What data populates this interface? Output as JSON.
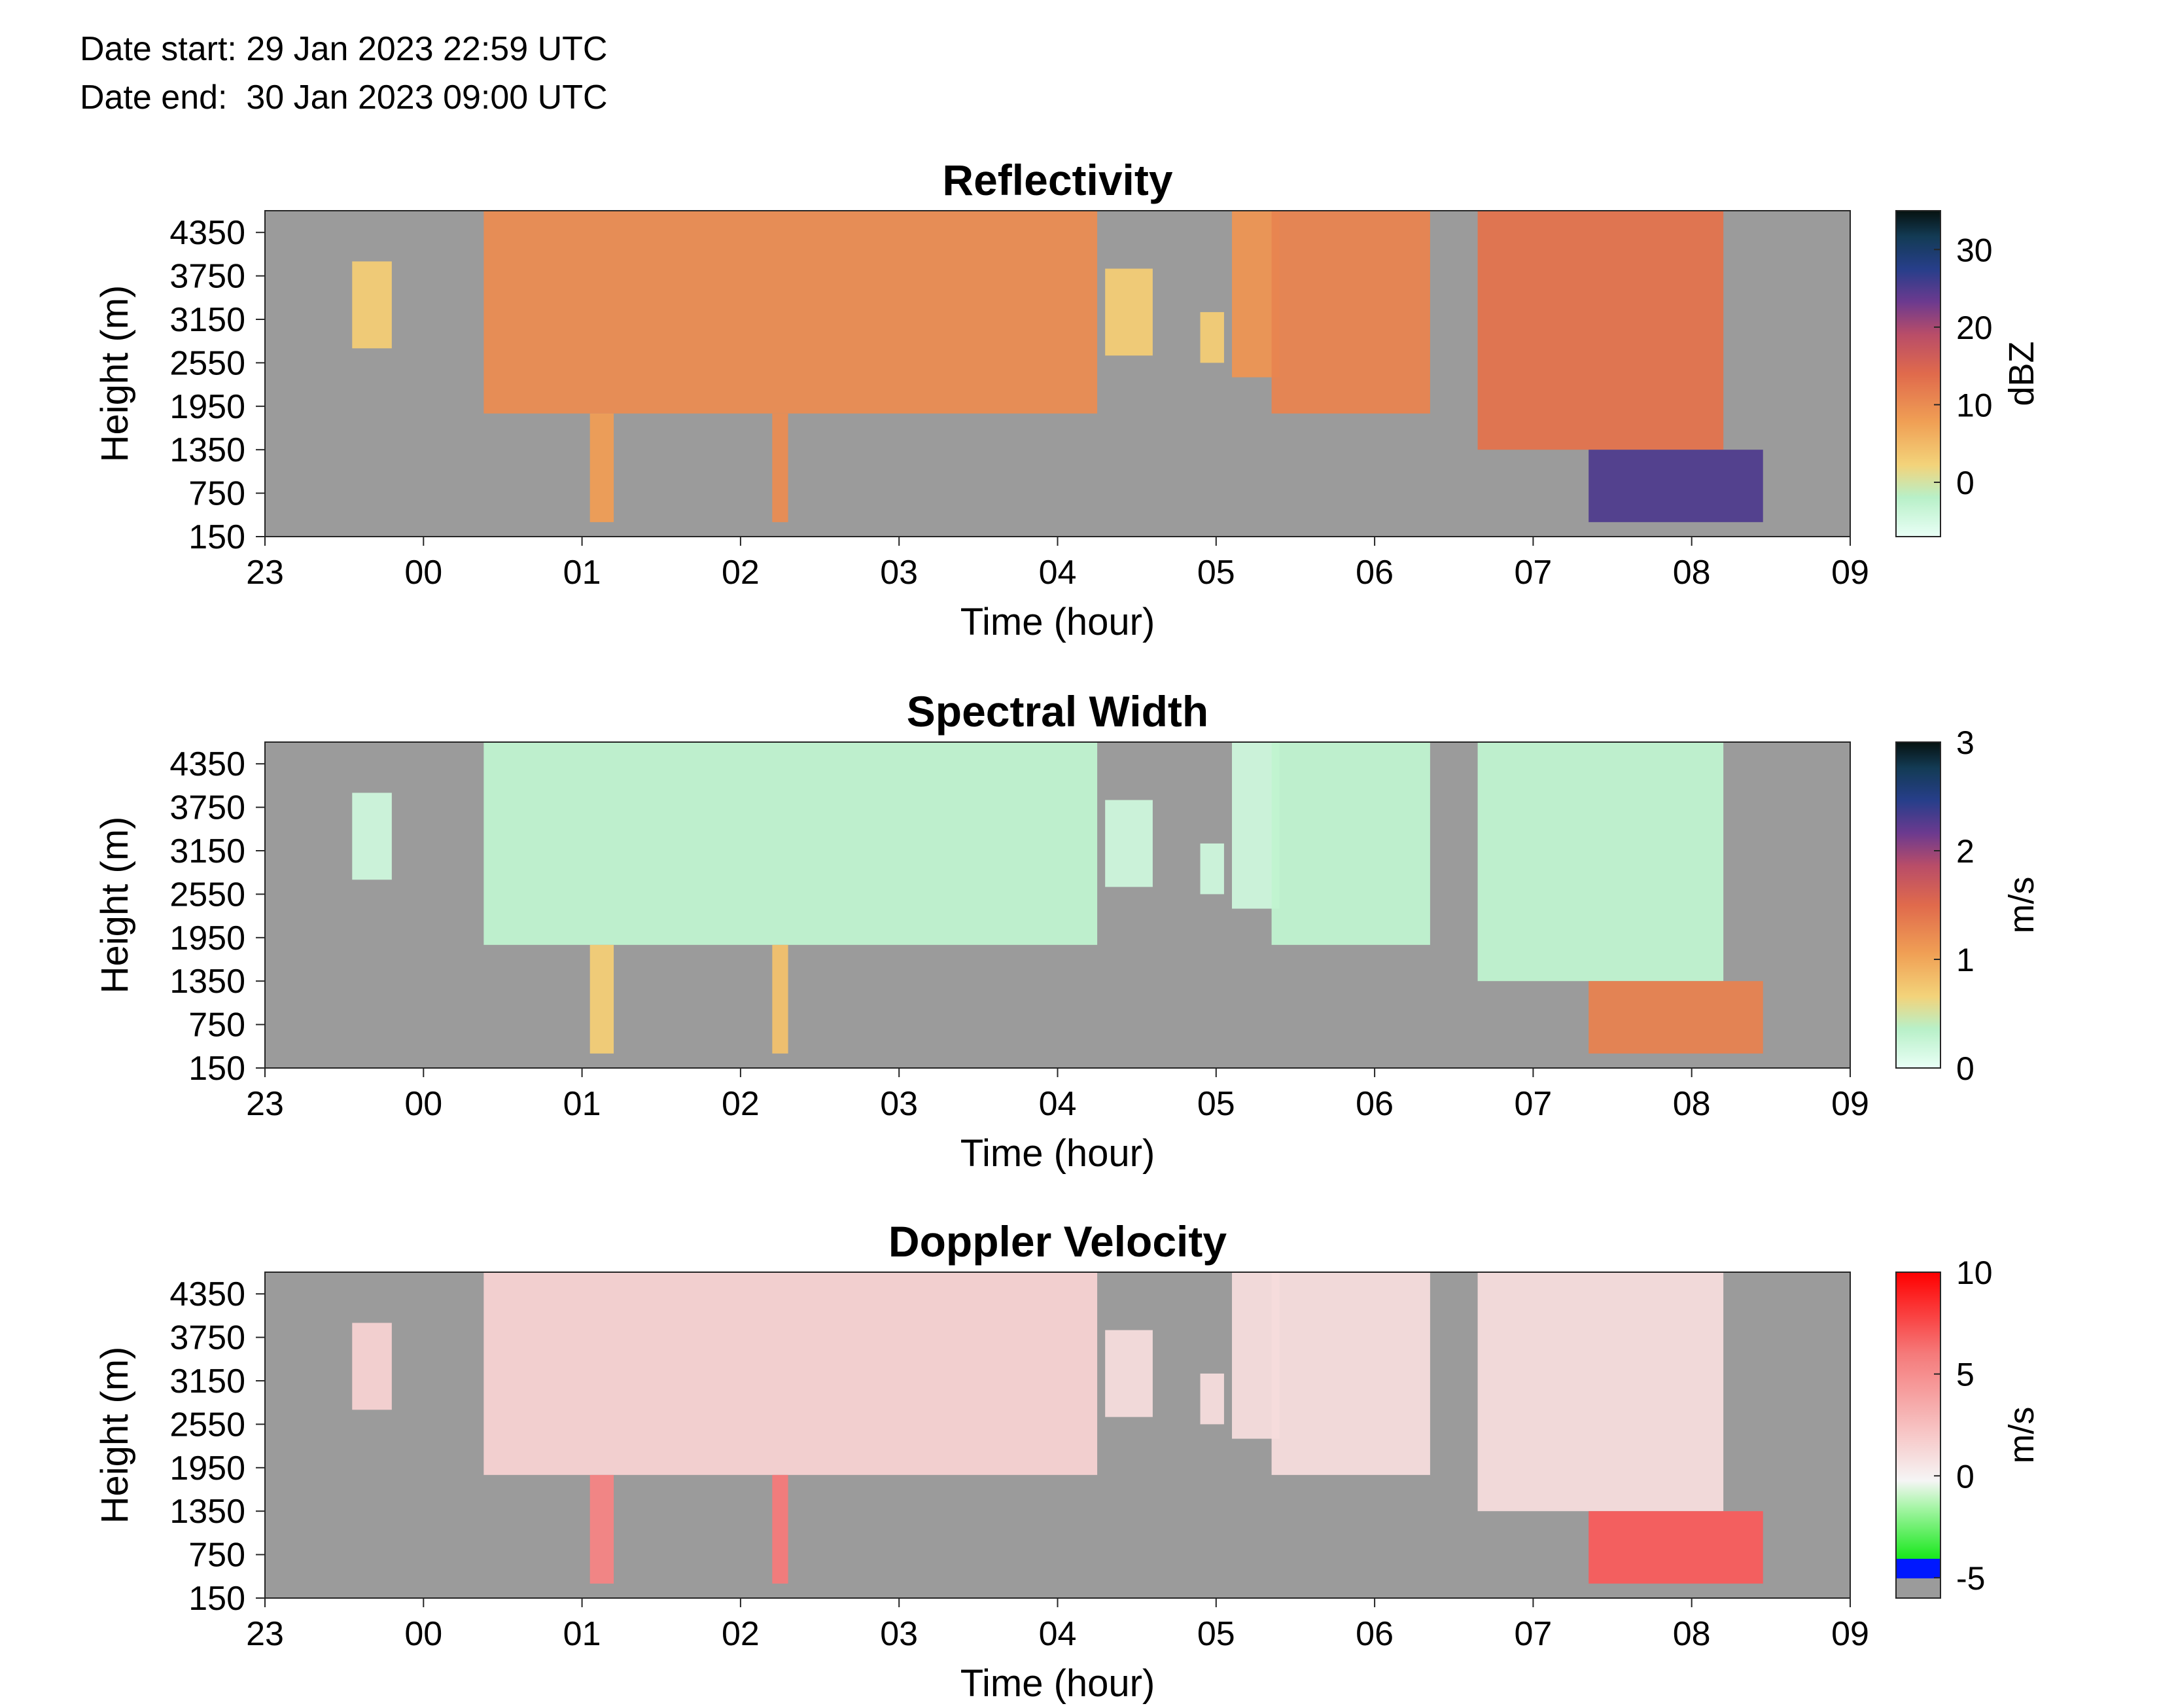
{
  "header": {
    "date_start": "Date start: 29 Jan 2023 22:59 UTC",
    "date_end": "Date end:  30 Jan 2023 09:00 UTC"
  },
  "chart_data": [
    {
      "type": "heatmap",
      "title": "Reflectivity",
      "xlabel": "Time (hour)",
      "ylabel": "Height (m)",
      "x_ticks": [
        "23",
        "00",
        "01",
        "02",
        "03",
        "04",
        "05",
        "06",
        "07",
        "08",
        "09"
      ],
      "y_ticks": [
        "150",
        "750",
        "1350",
        "1950",
        "2550",
        "3150",
        "3750",
        "4350"
      ],
      "xlim_hours": [
        -1,
        9
      ],
      "ylim": [
        150,
        4650
      ],
      "colorbar": {
        "label": "dBZ",
        "ticks": [
          "0",
          "10",
          "20",
          "30"
        ],
        "tick_values": [
          0,
          10,
          20,
          30
        ],
        "range": [
          -7,
          35
        ]
      },
      "background_color": "#9b9b9b",
      "cloud_cells": [
        {
          "t0": -0.45,
          "t1": -0.2,
          "h0": 2750,
          "h1": 3950,
          "v": 3
        },
        {
          "t0": 0.38,
          "t1": 4.25,
          "h0": 1850,
          "h1": 4650,
          "v": 10
        },
        {
          "t0": 1.05,
          "t1": 1.2,
          "h0": 350,
          "h1": 1850,
          "v": 8
        },
        {
          "t0": 2.2,
          "t1": 2.3,
          "h0": 350,
          "h1": 1850,
          "v": 10
        },
        {
          "t0": 4.3,
          "t1": 4.6,
          "h0": 2650,
          "h1": 3850,
          "v": 3
        },
        {
          "t0": 4.9,
          "t1": 5.05,
          "h0": 2550,
          "h1": 3250,
          "v": 3
        },
        {
          "t0": 5.1,
          "t1": 5.4,
          "h0": 2350,
          "h1": 4650,
          "v": 9
        },
        {
          "t0": 5.35,
          "t1": 6.35,
          "h0": 1850,
          "h1": 4650,
          "v": 11
        },
        {
          "t0": 6.65,
          "t1": 8.2,
          "h0": 1350,
          "h1": 4650,
          "v": 13
        },
        {
          "t0": 7.35,
          "t1": 8.45,
          "h0": 350,
          "h1": 1350,
          "v": 25
        }
      ]
    },
    {
      "type": "heatmap",
      "title": "Spectral Width",
      "xlabel": "Time (hour)",
      "ylabel": "Height (m)",
      "x_ticks": [
        "23",
        "00",
        "01",
        "02",
        "03",
        "04",
        "05",
        "06",
        "07",
        "08",
        "09"
      ],
      "y_ticks": [
        "150",
        "750",
        "1350",
        "1950",
        "2550",
        "3150",
        "3750",
        "4350"
      ],
      "xlim_hours": [
        -1,
        9
      ],
      "ylim": [
        150,
        4650
      ],
      "colorbar": {
        "label": "m/s",
        "ticks": [
          "0",
          "1",
          "2",
          "3"
        ],
        "tick_values": [
          0,
          1,
          2,
          3
        ],
        "range": [
          0,
          3
        ]
      },
      "background_color": "#9b9b9b",
      "cloud_cells": [
        {
          "t0": -0.45,
          "t1": -0.2,
          "h0": 2750,
          "h1": 3950,
          "v": 0.2
        },
        {
          "t0": 0.38,
          "t1": 4.25,
          "h0": 1850,
          "h1": 4650,
          "v": 0.3
        },
        {
          "t0": 1.05,
          "t1": 1.2,
          "h0": 350,
          "h1": 1850,
          "v": 0.7
        },
        {
          "t0": 2.2,
          "t1": 2.3,
          "h0": 350,
          "h1": 1850,
          "v": 0.8
        },
        {
          "t0": 4.3,
          "t1": 4.6,
          "h0": 2650,
          "h1": 3850,
          "v": 0.2
        },
        {
          "t0": 4.9,
          "t1": 5.05,
          "h0": 2550,
          "h1": 3250,
          "v": 0.2
        },
        {
          "t0": 5.1,
          "t1": 5.4,
          "h0": 2350,
          "h1": 4650,
          "v": 0.2
        },
        {
          "t0": 5.35,
          "t1": 6.35,
          "h0": 1850,
          "h1": 4650,
          "v": 0.3
        },
        {
          "t0": 6.65,
          "t1": 8.2,
          "h0": 1350,
          "h1": 4650,
          "v": 0.3
        },
        {
          "t0": 7.35,
          "t1": 8.45,
          "h0": 350,
          "h1": 1350,
          "v": 1.3
        }
      ]
    },
    {
      "type": "heatmap",
      "title": "Doppler Velocity",
      "xlabel": "Time (hour)",
      "ylabel": "Height (m)",
      "x_ticks": [
        "23",
        "00",
        "01",
        "02",
        "03",
        "04",
        "05",
        "06",
        "07",
        "08",
        "09"
      ],
      "y_ticks": [
        "150",
        "750",
        "1350",
        "1950",
        "2550",
        "3150",
        "3750",
        "4350"
      ],
      "xlim_hours": [
        -1,
        9
      ],
      "ylim": [
        150,
        4650
      ],
      "colorbar": {
        "label": "m/s",
        "ticks": [
          "10",
          "5",
          "0",
          "-5"
        ],
        "tick_values": [
          10,
          5,
          0,
          -5
        ],
        "range": [
          -6,
          10
        ]
      },
      "background_color": "#9b9b9b",
      "cloud_cells": [
        {
          "t0": -0.45,
          "t1": -0.2,
          "h0": 2750,
          "h1": 3950,
          "v": 1.5
        },
        {
          "t0": 0.38,
          "t1": 4.25,
          "h0": 1850,
          "h1": 4650,
          "v": 1.5
        },
        {
          "t0": 1.05,
          "t1": 1.2,
          "h0": 350,
          "h1": 1850,
          "v": 5.5
        },
        {
          "t0": 2.2,
          "t1": 2.3,
          "h0": 350,
          "h1": 1850,
          "v": 6
        },
        {
          "t0": 4.3,
          "t1": 4.6,
          "h0": 2650,
          "h1": 3850,
          "v": 1
        },
        {
          "t0": 4.9,
          "t1": 5.05,
          "h0": 2550,
          "h1": 3250,
          "v": 1
        },
        {
          "t0": 5.1,
          "t1": 5.4,
          "h0": 2350,
          "h1": 4650,
          "v": 1
        },
        {
          "t0": 5.35,
          "t1": 6.35,
          "h0": 1850,
          "h1": 4650,
          "v": 1
        },
        {
          "t0": 6.65,
          "t1": 8.2,
          "h0": 1350,
          "h1": 4650,
          "v": 1
        },
        {
          "t0": 7.35,
          "t1": 8.45,
          "h0": 350,
          "h1": 1350,
          "v": 7
        }
      ]
    }
  ]
}
